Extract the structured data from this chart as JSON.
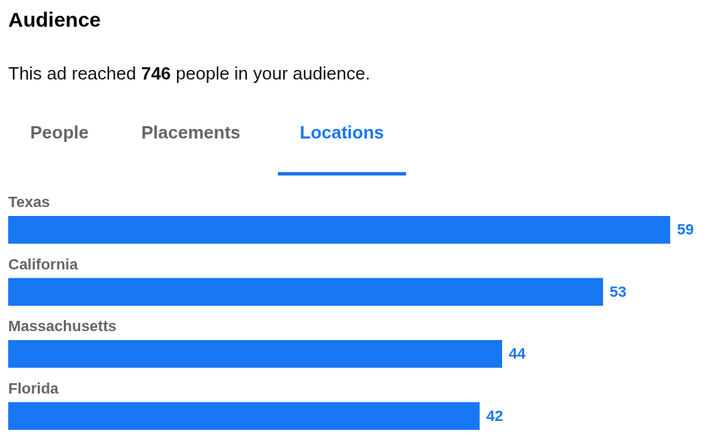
{
  "chart_data": {
    "type": "bar",
    "orientation": "horizontal",
    "title": "Audience",
    "subtitle": "This ad reached 746 people in your audience.",
    "annotations": [
      "People",
      "Placements",
      "Locations"
    ],
    "categories": [
      "Texas",
      "California",
      "Massachusetts",
      "Florida"
    ],
    "values": [
      59,
      53,
      44,
      42
    ],
    "color": "#1877f2",
    "data_labels": true,
    "legend": false
  }
}
